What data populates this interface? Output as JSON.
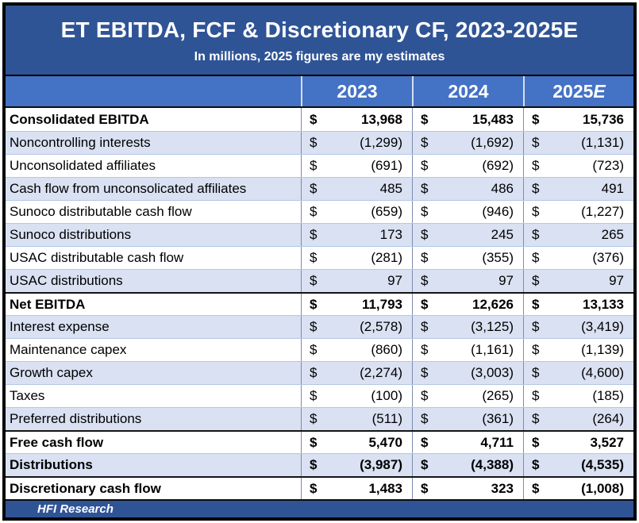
{
  "title": "ET EBITDA, FCF & Discretionary CF, 2023-2025E",
  "subtitle": "In millions, 2025 figures are my estimates",
  "footer_brand": "HFI Research",
  "colors": {
    "title_bar": "#2F5496",
    "header_row": "#4472C4",
    "striped_row": "#D9E1F2",
    "row_divider": "#B4C6E7",
    "column_divider": "#7C8DB0",
    "section_divider": "#141414",
    "outer_border": "#000000",
    "header_text": "#ffffff",
    "body_text": "#000000"
  },
  "table": {
    "currency": "$",
    "columns": [
      {
        "label": "2023",
        "suffix": ""
      },
      {
        "label": "2024",
        "suffix": ""
      },
      {
        "label": "2025",
        "suffix": "E"
      }
    ],
    "rows": [
      {
        "label": "Consolidated EBITDA",
        "values": [
          "13,968",
          "15,483",
          "15,736"
        ],
        "bold": true,
        "striped": false,
        "section_top": false
      },
      {
        "label": "Noncontrolling interests",
        "values": [
          "(1,299)",
          "(1,692)",
          "(1,131)"
        ],
        "bold": false,
        "striped": true,
        "section_top": false
      },
      {
        "label": "Unconsolidated affiliates",
        "values": [
          "(691)",
          "(692)",
          "(723)"
        ],
        "bold": false,
        "striped": false,
        "section_top": false
      },
      {
        "label": "Cash flow from unconsolicated affiliates",
        "values": [
          "485",
          "486",
          "491"
        ],
        "bold": false,
        "striped": true,
        "section_top": false
      },
      {
        "label": "Sunoco distributable cash flow",
        "values": [
          "(659)",
          "(946)",
          "(1,227)"
        ],
        "bold": false,
        "striped": false,
        "section_top": false
      },
      {
        "label": "Sunoco distributions",
        "values": [
          "173",
          "245",
          "265"
        ],
        "bold": false,
        "striped": true,
        "section_top": false
      },
      {
        "label": "USAC distributable cash flow",
        "values": [
          "(281)",
          "(355)",
          "(376)"
        ],
        "bold": false,
        "striped": false,
        "section_top": false
      },
      {
        "label": "USAC distributions",
        "values": [
          "97",
          "97",
          "97"
        ],
        "bold": false,
        "striped": true,
        "section_top": false
      },
      {
        "label": "Net EBITDA",
        "values": [
          "11,793",
          "12,626",
          "13,133"
        ],
        "bold": true,
        "striped": false,
        "section_top": true
      },
      {
        "label": "Interest expense",
        "values": [
          "(2,578)",
          "(3,125)",
          "(3,419)"
        ],
        "bold": false,
        "striped": true,
        "section_top": false
      },
      {
        "label": "Maintenance capex",
        "values": [
          "(860)",
          "(1,161)",
          "(1,139)"
        ],
        "bold": false,
        "striped": false,
        "section_top": false
      },
      {
        "label": "Growth capex",
        "values": [
          "(2,274)",
          "(3,003)",
          "(4,600)"
        ],
        "bold": false,
        "striped": true,
        "section_top": false
      },
      {
        "label": "Taxes",
        "values": [
          "(100)",
          "(265)",
          "(185)"
        ],
        "bold": false,
        "striped": false,
        "section_top": false
      },
      {
        "label": "Preferred distributions",
        "values": [
          "(511)",
          "(361)",
          "(264)"
        ],
        "bold": false,
        "striped": true,
        "section_top": false
      },
      {
        "label": "Free cash flow",
        "values": [
          "5,470",
          "4,711",
          "3,527"
        ],
        "bold": true,
        "striped": false,
        "section_top": true
      },
      {
        "label": "Distributions",
        "values": [
          "(3,987)",
          "(4,388)",
          "(4,535)"
        ],
        "bold": true,
        "striped": true,
        "section_top": false
      },
      {
        "label": "Discretionary cash flow",
        "values": [
          "1,483",
          "323",
          "(1,008)"
        ],
        "bold": true,
        "striped": false,
        "section_top": true
      }
    ]
  },
  "chart_data": {
    "type": "table",
    "title": "ET EBITDA, FCF & Discretionary CF, 2023-2025E",
    "subtitle": "In millions, 2025 figures are my estimates",
    "unit": "USD millions",
    "columns": [
      "2023",
      "2024",
      "2025E"
    ],
    "rows": [
      {
        "label": "Consolidated EBITDA",
        "values": [
          13968,
          15483,
          15736
        ]
      },
      {
        "label": "Noncontrolling interests",
        "values": [
          -1299,
          -1692,
          -1131
        ]
      },
      {
        "label": "Unconsolidated affiliates",
        "values": [
          -691,
          -692,
          -723
        ]
      },
      {
        "label": "Cash flow from unconsolicated affiliates",
        "values": [
          485,
          486,
          491
        ]
      },
      {
        "label": "Sunoco distributable cash flow",
        "values": [
          -659,
          -946,
          -1227
        ]
      },
      {
        "label": "Sunoco distributions",
        "values": [
          173,
          245,
          265
        ]
      },
      {
        "label": "USAC distributable cash flow",
        "values": [
          -281,
          -355,
          -376
        ]
      },
      {
        "label": "USAC distributions",
        "values": [
          97,
          97,
          97
        ]
      },
      {
        "label": "Net EBITDA",
        "values": [
          11793,
          12626,
          13133
        ]
      },
      {
        "label": "Interest expense",
        "values": [
          -2578,
          -3125,
          -3419
        ]
      },
      {
        "label": "Maintenance capex",
        "values": [
          -860,
          -1161,
          -1139
        ]
      },
      {
        "label": "Growth capex",
        "values": [
          -2274,
          -3003,
          -4600
        ]
      },
      {
        "label": "Taxes",
        "values": [
          -100,
          -265,
          -185
        ]
      },
      {
        "label": "Preferred distributions",
        "values": [
          -511,
          -361,
          -264
        ]
      },
      {
        "label": "Free cash flow",
        "values": [
          5470,
          4711,
          3527
        ]
      },
      {
        "label": "Distributions",
        "values": [
          -3987,
          -4388,
          -4535
        ]
      },
      {
        "label": "Discretionary cash flow",
        "values": [
          1483,
          323,
          -1008
        ]
      }
    ]
  }
}
